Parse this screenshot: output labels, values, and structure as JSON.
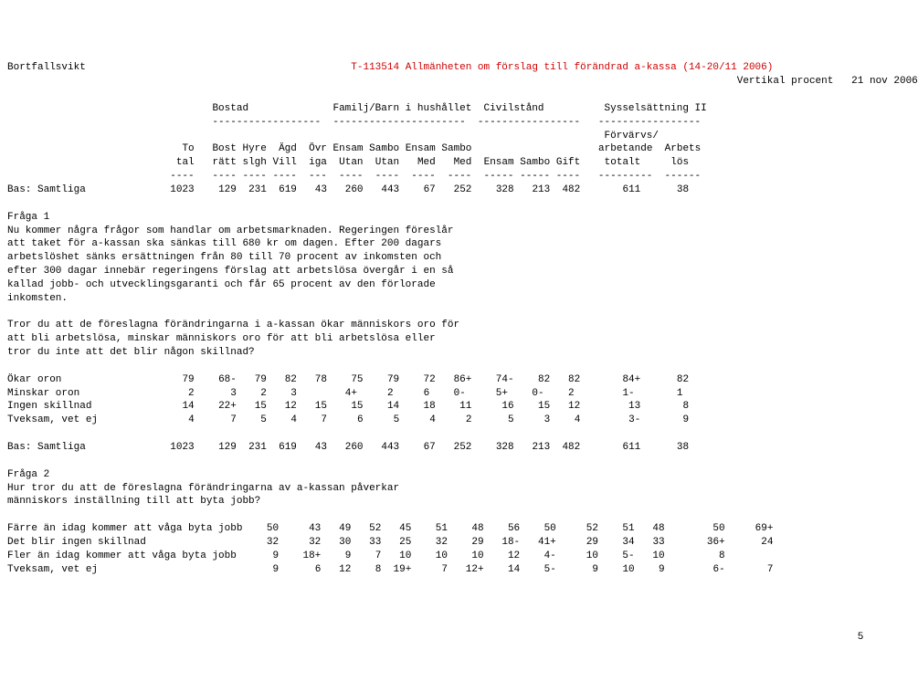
{
  "header": {
    "title_left": "Bortfallsvikt",
    "title_center": "T-113514 Allmänheten om förslag till förändrad a-kassa (14-20/11 2006)",
    "report_type": "Vertikal procent",
    "date": "21 nov 2006",
    "title_color": "#cc0000",
    "text_color": "#000000",
    "background": "#ffffff",
    "font": "Courier New",
    "fontsize_pt": 8
  },
  "column_groups": {
    "g1": "Bostad",
    "g2": "Familj/Barn i hushållet",
    "g3": "Civilstånd",
    "g4": "Sysselsättning II"
  },
  "column_sub": {
    "c1a": "To",
    "c1b": "tal",
    "c2a": "Bost",
    "c2b": "rätt",
    "c3a": "Hyre",
    "c3b": "slgh",
    "c4a": "Ägd",
    "c4b": "Vill",
    "c5a": "Övr",
    "c5b": "iga",
    "c6a": "Ensam",
    "c6b": "Utan",
    "c7a": "Sambo",
    "c7b": "Utan",
    "c8a": "Ensam",
    "c8b": "Med",
    "c9a": "Sambo",
    "c9b": "Med",
    "c10a": "",
    "c10b": "Ensam",
    "c11a": "",
    "c11b": "Sambo",
    "c12a": "",
    "c12b": "Gift",
    "c13a": "Förvärvs/",
    "c13b": "arbetande",
    "c13c": "totalt",
    "c14a": "Arbets",
    "c14b": "lös"
  },
  "bas1": {
    "label": "Bas: Samtliga",
    "v1": "1023",
    "v2": "129",
    "v3": "231",
    "v4": "619",
    "v5": "43",
    "v6": "260",
    "v7": "443",
    "v8": "67",
    "v9": "252",
    "v10": "328",
    "v11": "213",
    "v12": "482",
    "v13": "611",
    "v14": "38"
  },
  "fraga1": {
    "title": "Fråga 1",
    "p1": "Nu kommer några frågor som handlar om arbetsmarknaden. Regeringen föreslår",
    "p2": "att taket för a-kassan ska sänkas till 680 kr om dagen. Efter 200 dagars",
    "p3": "arbetslöshet sänks ersättningen från 80 till 70 procent av inkomsten och",
    "p4": "efter 300 dagar innebär regeringens förslag att arbetslösa övergår i en så",
    "p5": "kallad jobb- och utvecklingsgaranti och får 65 procent av den förlorade",
    "p6": "inkomsten.",
    "q1": "Tror du att de föreslagna förändringarna i a-kassan ökar människors oro för",
    "q2": "att bli arbetslösa, minskar människors oro för att bli arbetslösa eller",
    "q3": "tror du inte att det blir någon skillnad?"
  },
  "f1rows": {
    "r1": {
      "label": "Ökar oron",
      "v1": "79",
      "v2": "68-",
      "v3": "79",
      "v4": "82",
      "v5": "78",
      "v6": "75",
      "v7": "79",
      "v8": "72",
      "v9": "86+",
      "v10": "74-",
      "v11": "82",
      "v12": "82",
      "v13": "84+",
      "v14": "82"
    },
    "r2": {
      "label": "Minskar oron",
      "v1": "2",
      "v2": "3",
      "v3": "2",
      "v4": "3",
      "v5": "",
      "v6": "4+",
      "v7": "2",
      "v8": "6",
      "v9": "0-",
      "v10": "5+",
      "v11": "0-",
      "v12": "2",
      "v13": "1-",
      "v14": "1"
    },
    "r3": {
      "label": "Ingen skillnad",
      "v1": "14",
      "v2": "22+",
      "v3": "15",
      "v4": "12",
      "v5": "15",
      "v6": "15",
      "v7": "14",
      "v8": "18",
      "v9": "11",
      "v10": "16",
      "v11": "15",
      "v12": "12",
      "v13": "13",
      "v14": "8"
    },
    "r4": {
      "label": "Tveksam, vet ej",
      "v1": "4",
      "v2": "7",
      "v3": "5",
      "v4": "4",
      "v5": "7",
      "v6": "6",
      "v7": "5",
      "v8": "4",
      "v9": "2",
      "v10": "5",
      "v11": "3",
      "v12": "4",
      "v13": "3-",
      "v14": "9"
    }
  },
  "bas2": {
    "label": "Bas: Samtliga",
    "v1": "1023",
    "v2": "129",
    "v3": "231",
    "v4": "619",
    "v5": "43",
    "v6": "260",
    "v7": "443",
    "v8": "67",
    "v9": "252",
    "v10": "328",
    "v11": "213",
    "v12": "482",
    "v13": "611",
    "v14": "38"
  },
  "fraga2": {
    "title": "Fråga 2",
    "p1": "Hur tror du att de föreslagna förändringarna av a-kassan påverkar",
    "p2": "människors inställning till att byta jobb?"
  },
  "f2rows": {
    "r1": {
      "label": "Färre än idag kommer att våga byta jobb",
      "v1": "50",
      "v2": "43",
      "v3": "49",
      "v4": "52",
      "v5": "45",
      "v6": "51",
      "v7": "48",
      "v8": "56",
      "v9": "50",
      "v10": "52",
      "v11": "51",
      "v12": "48",
      "v13": "50",
      "v14": "69+"
    },
    "r2": {
      "label": "Det blir ingen skillnad",
      "v1": "32",
      "v2": "32",
      "v3": "30",
      "v4": "33",
      "v5": "25",
      "v6": "32",
      "v7": "29",
      "v8": "18-",
      "v9": "41+",
      "v10": "29",
      "v11": "34",
      "v12": "33",
      "v13": "36+",
      "v14": "24"
    },
    "r3": {
      "label": "Fler än idag kommer att våga byta jobb",
      "v1": "9",
      "v2": "18+",
      "v3": "9",
      "v4": "7",
      "v5": "10",
      "v6": "10",
      "v7": "10",
      "v8": "12",
      "v9": "4-",
      "v10": "10",
      "v11": "5-",
      "v12": "10",
      "v13": "8",
      "v14": ""
    },
    "r4": {
      "label": "Tveksam, vet ej",
      "v1": "9",
      "v2": "6",
      "v3": "12",
      "v4": "8",
      "v5": "19+",
      "v6": "7",
      "v7": "12+",
      "v8": "14",
      "v9": "5-",
      "v10": "9",
      "v11": "10",
      "v12": "9",
      "v13": "6-",
      "v14": "7"
    }
  },
  "page_number": "5"
}
